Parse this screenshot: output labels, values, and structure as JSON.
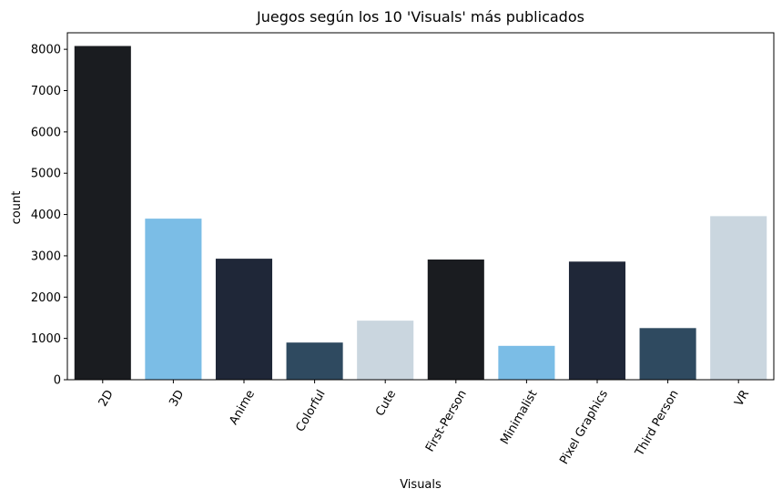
{
  "chart_data": {
    "type": "bar",
    "title": "Juegos según los 10 'Visuals' más publicados",
    "xlabel": "Visuals",
    "ylabel": "count",
    "categories": [
      "2D",
      "3D",
      "Anime",
      "Colorful",
      "Cute",
      "First-Person",
      "Minimalist",
      "Pixel Graphics",
      "Third Person",
      "VR"
    ],
    "values": [
      8080,
      3900,
      2930,
      900,
      1430,
      2910,
      820,
      2860,
      1250,
      3960
    ],
    "colors": [
      "#1a1c20",
      "#7bbde6",
      "#1f2738",
      "#2f4a60",
      "#cad6df",
      "#1a1c20",
      "#7bbde6",
      "#1f2738",
      "#2f4a60",
      "#cad6df"
    ],
    "ylim": [
      0,
      8400
    ],
    "yticks": [
      0,
      1000,
      2000,
      3000,
      4000,
      5000,
      6000,
      7000,
      8000
    ],
    "grid": false,
    "legend": "none"
  }
}
